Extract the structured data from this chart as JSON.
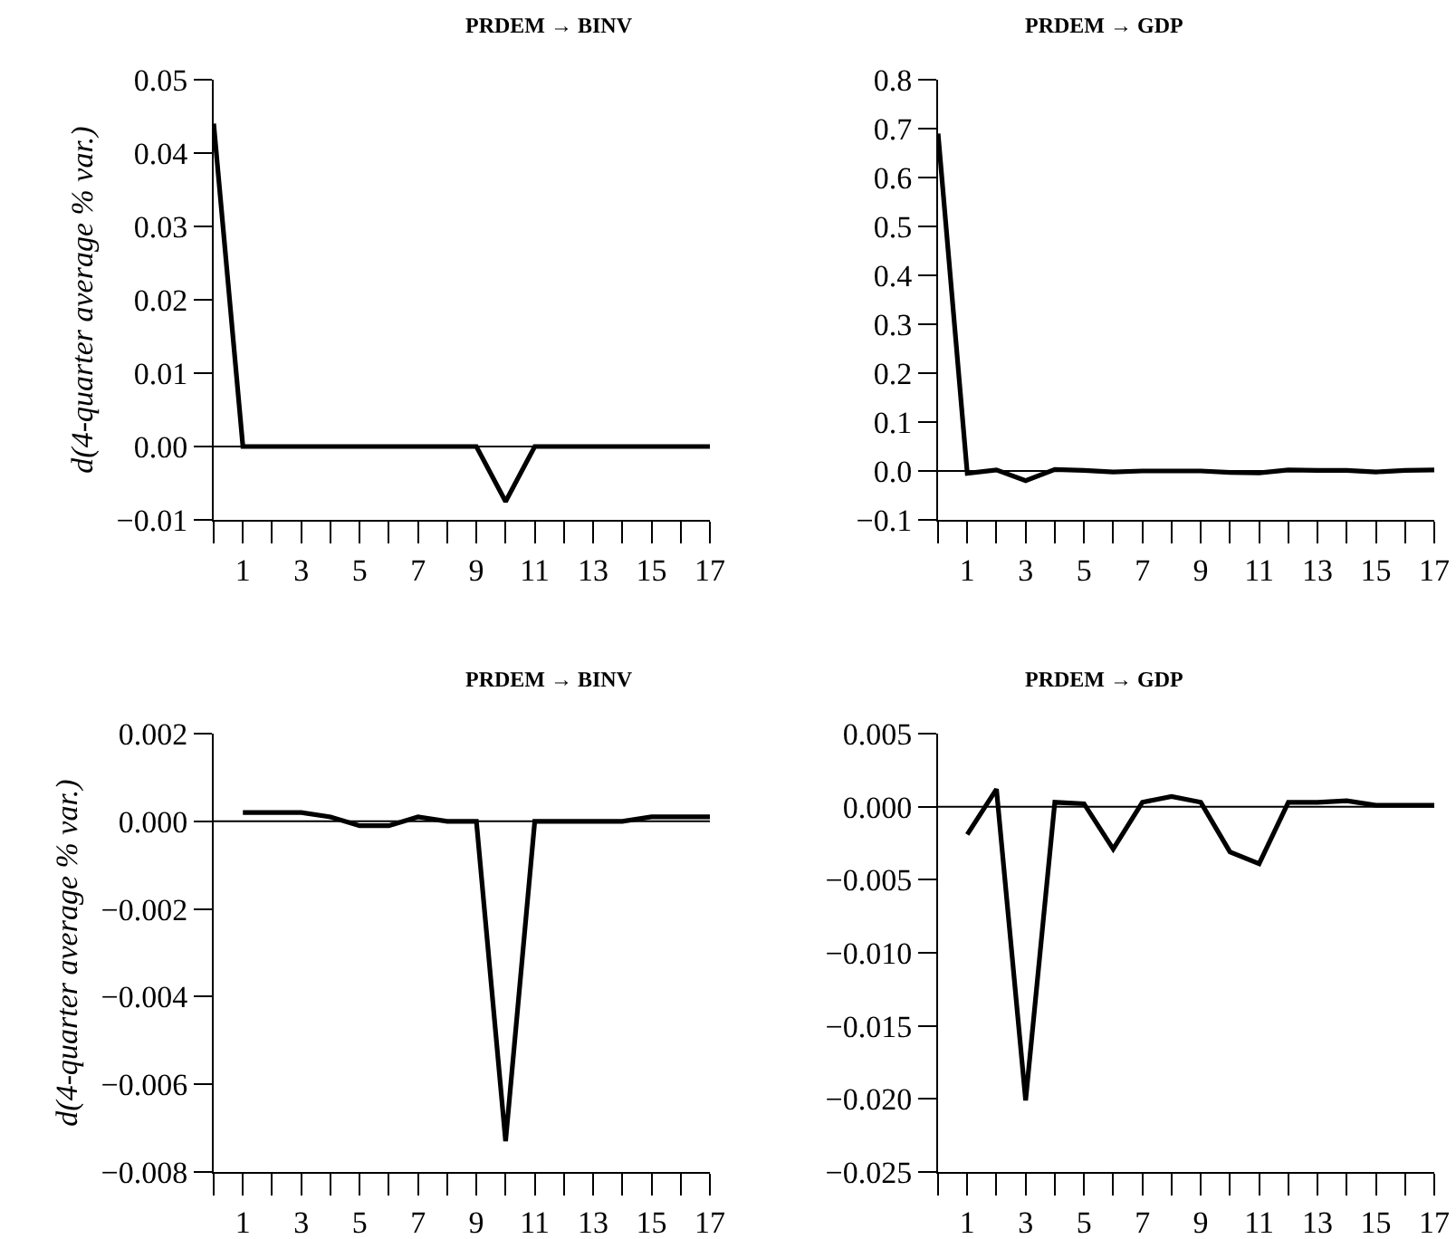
{
  "chart_data": [
    {
      "type": "line",
      "title": "PRDEM → BINV",
      "ylabel": "d(4-quarter average % var.)",
      "x": [
        0,
        1,
        2,
        3,
        4,
        5,
        6,
        7,
        8,
        9,
        10,
        11,
        12,
        13,
        14,
        15,
        16,
        17
      ],
      "series": [
        {
          "color": "#000000",
          "values": [
            0.044,
            0,
            0,
            0,
            0,
            0,
            0,
            0,
            0,
            0,
            -0.0075,
            0,
            0,
            0,
            0,
            0,
            0,
            0
          ]
        }
      ],
      "xlim": [
        0,
        17
      ],
      "xticks": [
        {
          "value": 0,
          "label": null
        },
        1,
        {
          "value": 2,
          "label": null
        },
        3,
        {
          "value": 4,
          "label": null
        },
        5,
        {
          "value": 6,
          "label": null
        },
        7,
        {
          "value": 8,
          "label": null
        },
        9,
        {
          "value": 10,
          "label": null
        },
        11,
        {
          "value": 12,
          "label": null
        },
        13,
        {
          "value": 14,
          "label": null
        },
        15,
        {
          "value": 16,
          "label": null
        },
        17
      ],
      "ylim": [
        -0.01,
        0.05
      ],
      "yticks": [
        {
          "value": -0.01,
          "label": "−0.01"
        },
        {
          "value": 0,
          "label": "0.00"
        },
        {
          "value": 0.01,
          "label": "0.01"
        },
        {
          "value": 0.02,
          "label": "0.02"
        },
        {
          "value": 0.03,
          "label": "0.03"
        },
        {
          "value": 0.04,
          "label": "0.04"
        },
        {
          "value": 0.05,
          "label": "0.05"
        }
      ],
      "ref_lines": [
        {
          "axis": "y",
          "value": 0,
          "color": "#000000"
        }
      ],
      "line_style": "solid",
      "marker": "none"
    },
    {
      "type": "line",
      "title": "PRDEM → GDP",
      "x": [
        0,
        1,
        2,
        3,
        4,
        5,
        6,
        7,
        8,
        9,
        10,
        11,
        12,
        13,
        14,
        15,
        16,
        17
      ],
      "series": [
        {
          "color": "#000000",
          "values": [
            0.69,
            -0.005,
            0.002,
            -0.02,
            0.003,
            0.001,
            -0.002,
            0,
            0,
            0,
            -0.003,
            -0.004,
            0.002,
            0.001,
            0.001,
            -0.002,
            0.001,
            0.002
          ]
        }
      ],
      "xlim": [
        0,
        17
      ],
      "xticks": [
        {
          "value": 0,
          "label": null
        },
        1,
        {
          "value": 2,
          "label": null
        },
        3,
        {
          "value": 4,
          "label": null
        },
        5,
        {
          "value": 6,
          "label": null
        },
        7,
        {
          "value": 8,
          "label": null
        },
        9,
        {
          "value": 10,
          "label": null
        },
        11,
        {
          "value": 12,
          "label": null
        },
        13,
        {
          "value": 14,
          "label": null
        },
        15,
        {
          "value": 16,
          "label": null
        },
        17
      ],
      "ylim": [
        -0.1,
        0.8
      ],
      "yticks": [
        {
          "value": -0.1,
          "label": "−0.1"
        },
        {
          "value": 0,
          "label": "0.0"
        },
        {
          "value": 0.1,
          "label": "0.1"
        },
        {
          "value": 0.2,
          "label": "0.2"
        },
        {
          "value": 0.3,
          "label": "0.3"
        },
        {
          "value": 0.4,
          "label": "0.4"
        },
        {
          "value": 0.5,
          "label": "0.5"
        },
        {
          "value": 0.6,
          "label": "0.6"
        },
        {
          "value": 0.7,
          "label": "0.7"
        },
        {
          "value": 0.8,
          "label": "0.8"
        }
      ],
      "ref_lines": [
        {
          "axis": "y",
          "value": 0,
          "color": "#000000"
        }
      ],
      "line_style": "solid",
      "marker": "none"
    },
    {
      "type": "line",
      "title": "PRDEM → BINV",
      "ylabel": "d(4-quarter average % var.)",
      "x": [
        1,
        2,
        3,
        4,
        5,
        6,
        7,
        8,
        9,
        10,
        11,
        12,
        13,
        14,
        15,
        16,
        17
      ],
      "series": [
        {
          "color": "#000000",
          "values": [
            0.0002,
            0.0002,
            0.0002,
            0.0001,
            -0.0001,
            -0.0001,
            0.0001,
            0,
            0,
            -0.0073,
            0,
            0,
            0,
            0,
            0.0001,
            0.0001,
            0.0001
          ]
        }
      ],
      "xlim": [
        0,
        17
      ],
      "xticks": [
        {
          "value": 0,
          "label": null
        },
        1,
        {
          "value": 2,
          "label": null
        },
        3,
        {
          "value": 4,
          "label": null
        },
        5,
        {
          "value": 6,
          "label": null
        },
        7,
        {
          "value": 8,
          "label": null
        },
        9,
        {
          "value": 10,
          "label": null
        },
        11,
        {
          "value": 12,
          "label": null
        },
        13,
        {
          "value": 14,
          "label": null
        },
        15,
        {
          "value": 16,
          "label": null
        },
        17
      ],
      "ylim": [
        -0.008,
        0.002
      ],
      "yticks": [
        {
          "value": -0.008,
          "label": "−0.008"
        },
        {
          "value": -0.006,
          "label": "−0.006"
        },
        {
          "value": -0.004,
          "label": "−0.004"
        },
        {
          "value": -0.002,
          "label": "−0.002"
        },
        {
          "value": 0,
          "label": "0.000"
        },
        {
          "value": 0.002,
          "label": "0.002"
        }
      ],
      "ref_lines": [
        {
          "axis": "y",
          "value": 0,
          "color": "#000000"
        }
      ],
      "line_style": "solid",
      "marker": "none"
    },
    {
      "type": "line",
      "title": "PRDEM → GDP",
      "x": [
        1,
        2,
        3,
        4,
        5,
        6,
        7,
        8,
        9,
        10,
        11,
        12,
        13,
        14,
        15,
        16,
        17
      ],
      "series": [
        {
          "color": "#000000",
          "values": [
            -0.0019,
            0.0012,
            -0.0201,
            0.0003,
            0.0002,
            -0.0029,
            0.0003,
            0.0007,
            0.0003,
            -0.0031,
            -0.0039,
            0.0003,
            0.0003,
            0.0004,
            0.0001,
            0.0001,
            0.0001
          ]
        }
      ],
      "xlim": [
        0,
        17
      ],
      "xticks": [
        {
          "value": 0,
          "label": null
        },
        1,
        {
          "value": 2,
          "label": null
        },
        3,
        {
          "value": 4,
          "label": null
        },
        5,
        {
          "value": 6,
          "label": null
        },
        7,
        {
          "value": 8,
          "label": null
        },
        9,
        {
          "value": 10,
          "label": null
        },
        11,
        {
          "value": 12,
          "label": null
        },
        13,
        {
          "value": 14,
          "label": null
        },
        15,
        {
          "value": 16,
          "label": null
        },
        17
      ],
      "ylim": [
        -0.025,
        0.005
      ],
      "yticks": [
        {
          "value": -0.025,
          "label": "−0.025"
        },
        {
          "value": -0.02,
          "label": "−0.020"
        },
        {
          "value": -0.015,
          "label": "−0.015"
        },
        {
          "value": -0.01,
          "label": "−0.010"
        },
        {
          "value": -0.005,
          "label": "−0.005"
        },
        {
          "value": 0,
          "label": "0.000"
        },
        {
          "value": 0.005,
          "label": "0.005"
        }
      ],
      "ref_lines": [
        {
          "axis": "y",
          "value": 0,
          "color": "#000000"
        }
      ],
      "line_style": "solid",
      "marker": "none"
    }
  ]
}
